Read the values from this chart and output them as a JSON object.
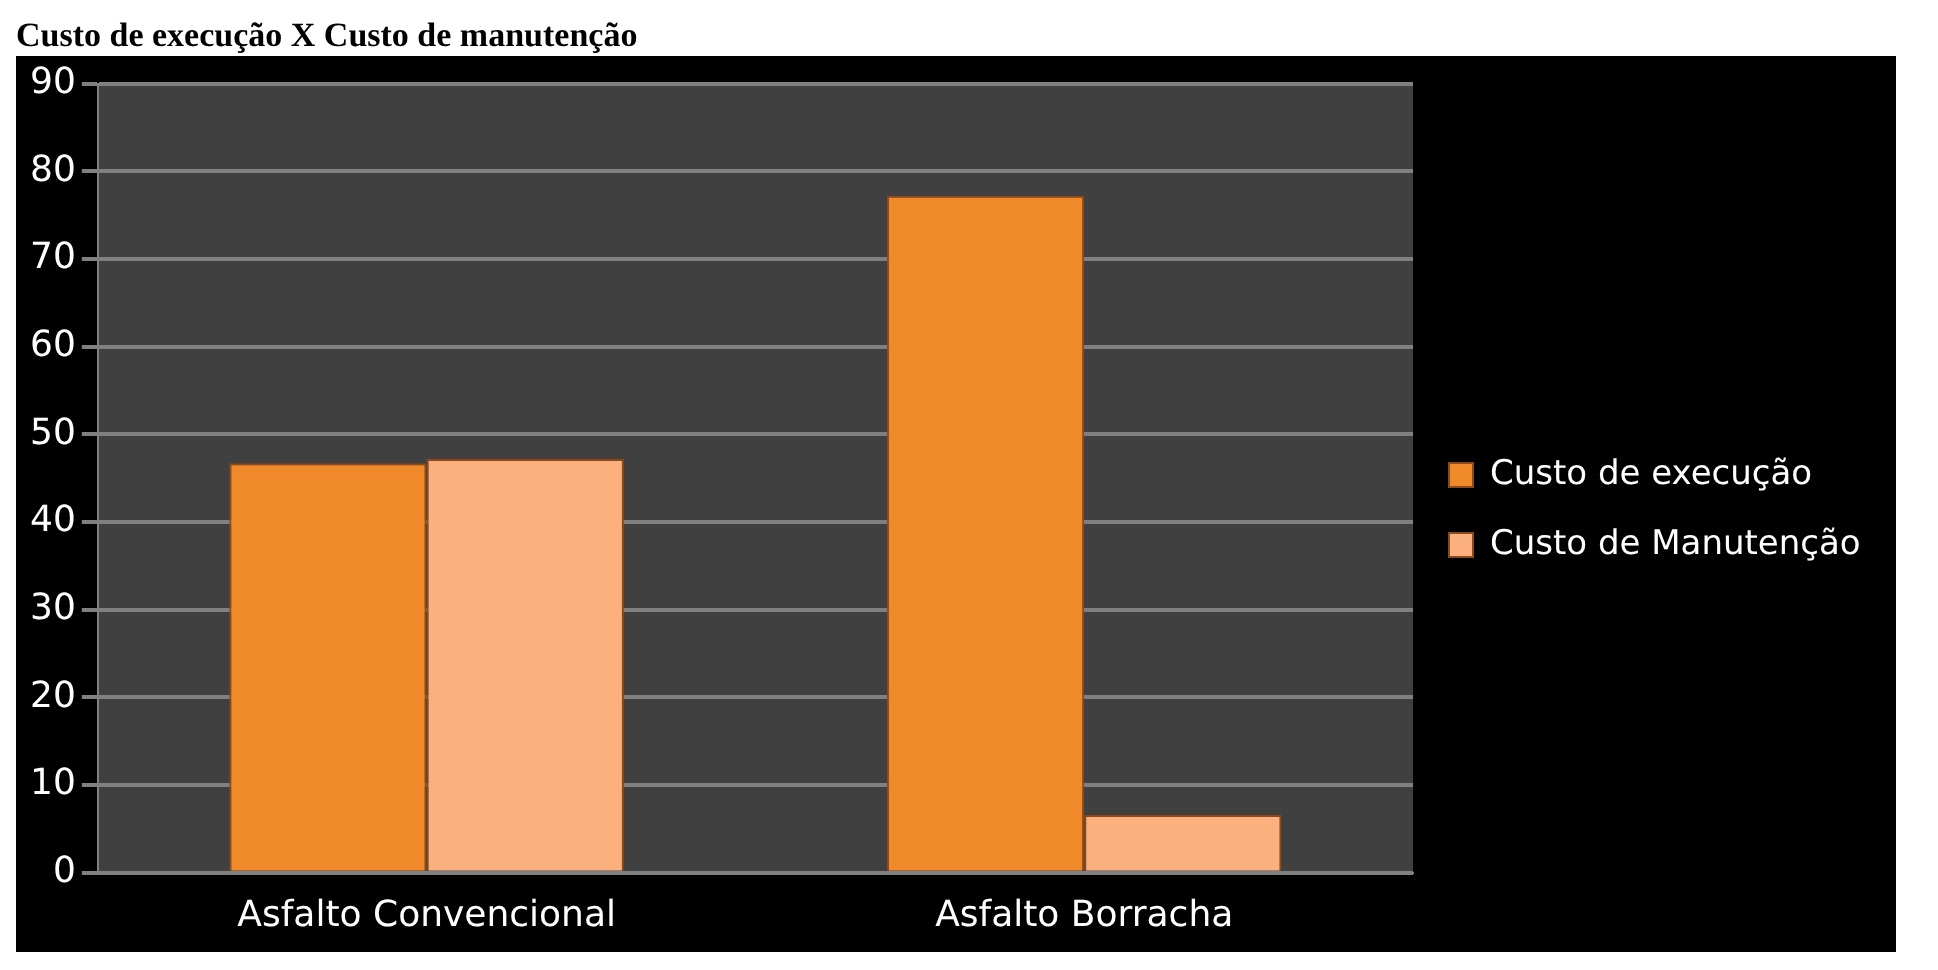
{
  "chart_data": {
    "type": "bar",
    "title": "Custo de execução X Custo de manutenção",
    "categories": [
      "Asfalto Convencional",
      "Asfalto Borracha"
    ],
    "series": [
      {
        "name": "Custo de execução",
        "color": "#f0892a",
        "values": [
          46.7,
          77.2
        ]
      },
      {
        "name": "Custo de Manutenção",
        "color": "#fbb07e",
        "values": [
          47.2,
          6.6
        ]
      }
    ],
    "ylim": [
      0,
      90
    ],
    "yticks": [
      0,
      10,
      20,
      30,
      40,
      50,
      60,
      70,
      80,
      90
    ],
    "grid": "y",
    "legend": "right"
  }
}
